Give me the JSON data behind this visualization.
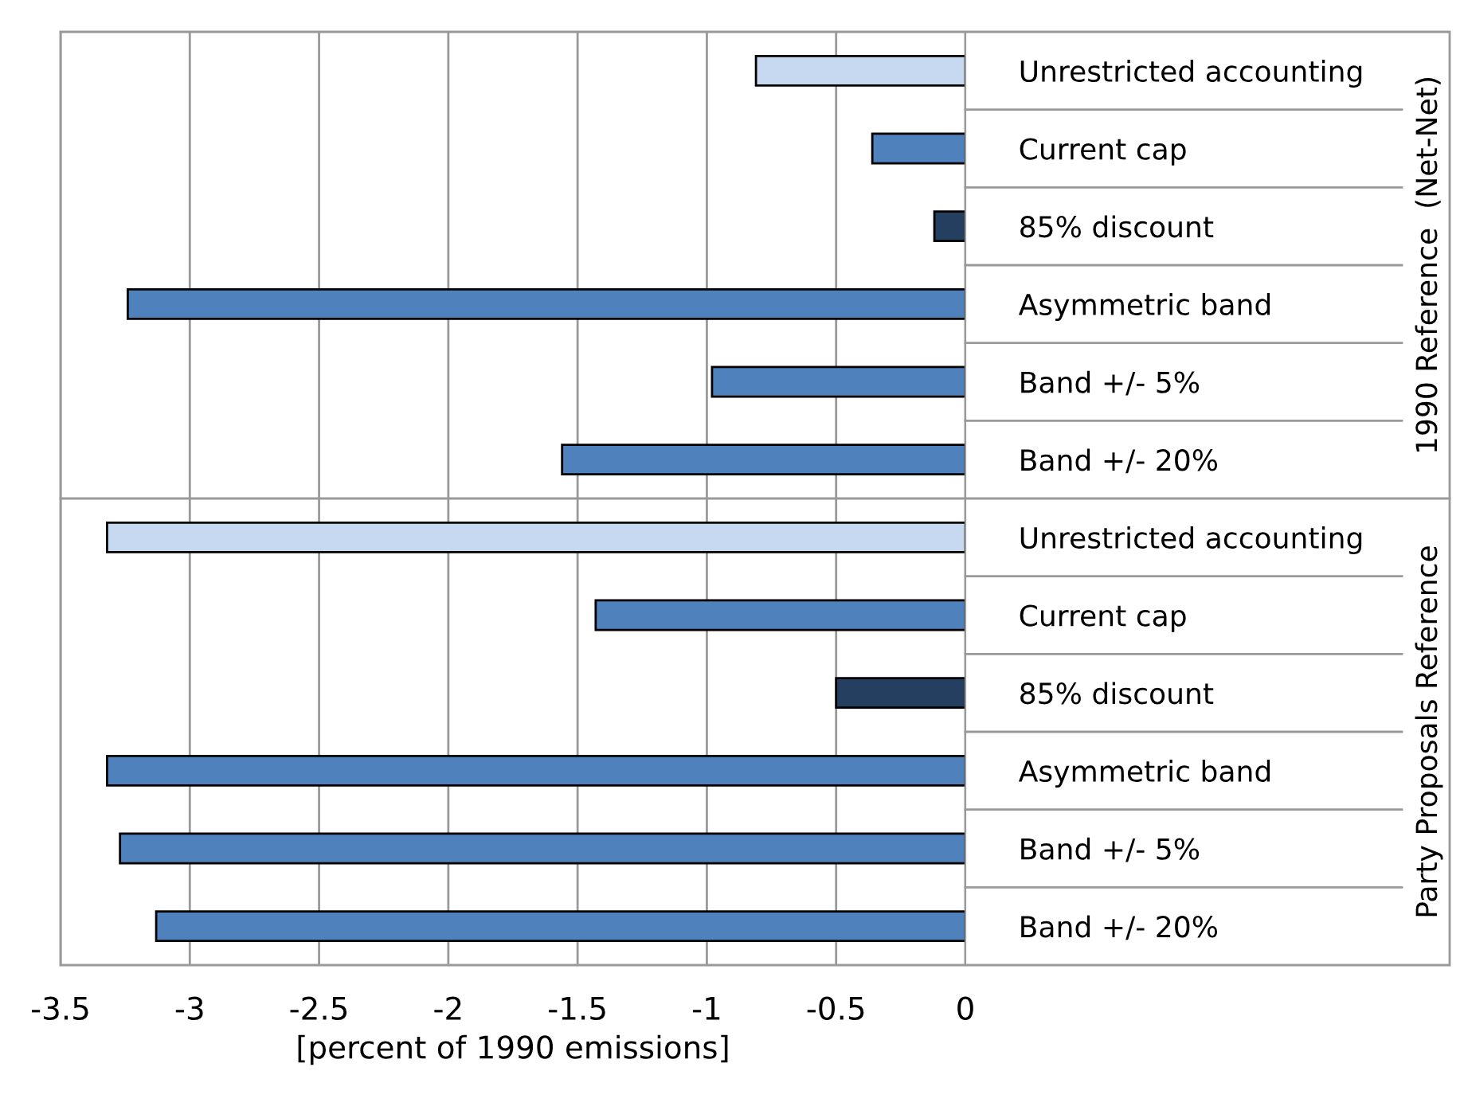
{
  "chart_data": {
    "type": "bar",
    "orientation": "horizontal",
    "xlabel": "[percent of 1990 emissions]",
    "categories": [
      "Unrestricted accounting",
      "Current cap",
      "85% discount",
      "Asymmetric band",
      "Band +/- 5%",
      "Band +/- 20%",
      "Unrestricted accounting",
      "Current cap",
      "85% discount",
      "Asymmetric band",
      "Band +/- 5%",
      "Band +/- 20%"
    ],
    "values": [
      -0.81,
      -0.36,
      -0.12,
      -3.24,
      -0.98,
      -1.56,
      -3.32,
      -1.43,
      -0.5,
      -3.32,
      -3.27,
      -3.13
    ],
    "colors": [
      "#c6d9f1",
      "#4f81bd",
      "#243f60",
      "#4f81bd",
      "#4f81bd",
      "#4f81bd",
      "#c6d9f1",
      "#4f81bd",
      "#243f60",
      "#4f81bd",
      "#4f81bd",
      "#4f81bd"
    ],
    "xlim": [
      -3.5,
      0
    ],
    "xticks": [
      -3.5,
      -3,
      -2.5,
      -2,
      -1.5,
      -1,
      -0.5,
      0
    ],
    "grid": "x",
    "annotations": [
      "1990 Reference  (Net-Net)",
      "Party Proposals Reference"
    ]
  }
}
